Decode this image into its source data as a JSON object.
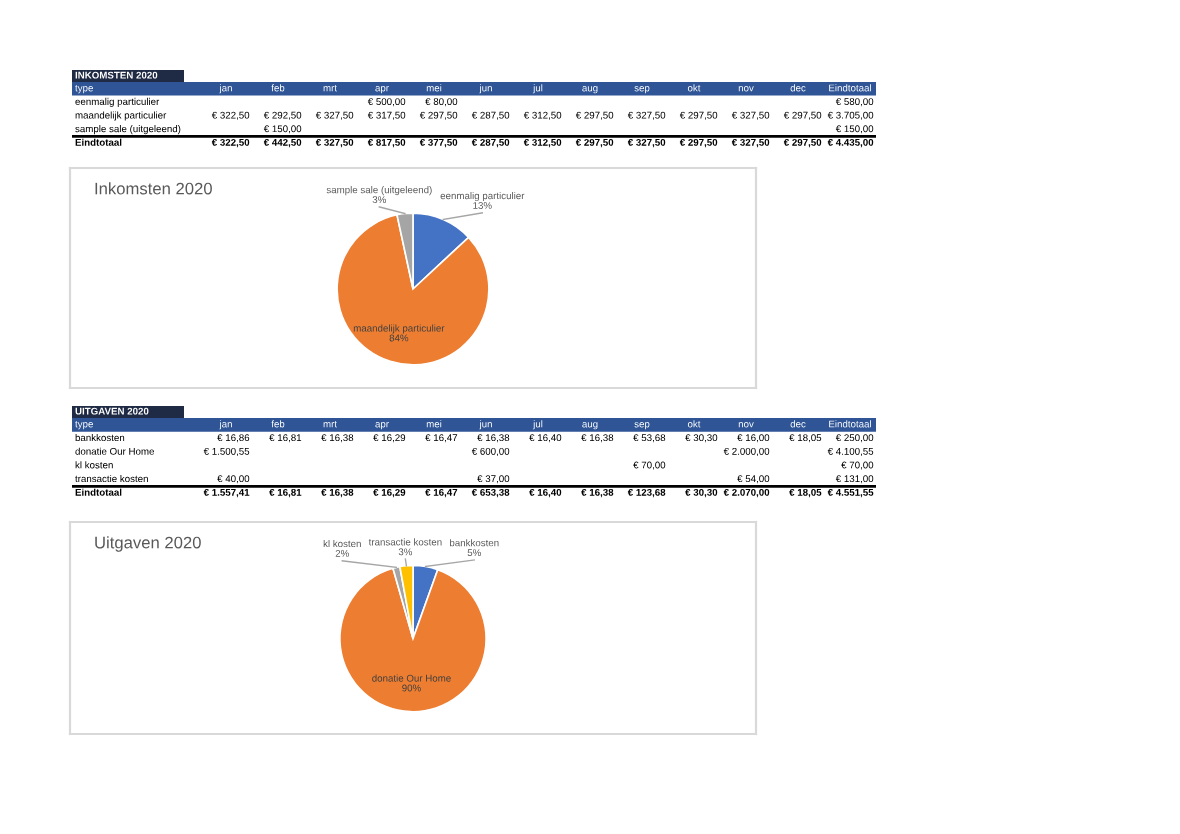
{
  "chart_data": [
    {
      "type": "other",
      "title": "INKOMSTEN 2020",
      "ylabel": "type",
      "categories": [
        "jan",
        "feb",
        "mrt",
        "apr",
        "mei",
        "jun",
        "jul",
        "aug",
        "sep",
        "okt",
        "nov",
        "dec",
        "Eindtotaal"
      ],
      "y_categories": [
        "eenmalig particulier",
        "maandelijk particulier",
        "sample sale (uitgeleend)",
        "Eindtotaal"
      ],
      "cell_labels": [
        [
          null,
          null,
          null,
          "€ 500,00",
          "€ 80,00",
          null,
          null,
          null,
          null,
          null,
          null,
          null,
          "€ 580,00"
        ],
        [
          "€ 322,50",
          "€ 292,50",
          "€ 327,50",
          "€ 317,50",
          "€ 297,50",
          "€ 287,50",
          "€ 312,50",
          "€ 297,50",
          "€ 327,50",
          "€ 297,50",
          "€ 327,50",
          "€ 297,50",
          "€ 3.705,00"
        ],
        [
          null,
          "€ 150,00",
          null,
          null,
          null,
          null,
          null,
          null,
          null,
          null,
          null,
          null,
          "€ 150,00"
        ],
        [
          "€ 322,50",
          "€ 442,50",
          "€ 327,50",
          "€ 817,50",
          "€ 377,50",
          "€ 287,50",
          "€ 312,50",
          "€ 297,50",
          "€ 327,50",
          "€ 297,50",
          "€ 327,50",
          "€ 297,50",
          "€ 4.435,00"
        ]
      ]
    },
    {
      "type": "pie",
      "title": "Inkomsten 2020",
      "categories": [
        "eenmalig particulier",
        "maandelijk particulier",
        "sample sale (uitgeleend)"
      ],
      "values": [
        13.08,
        83.54,
        3.38
      ],
      "colors": [
        "#4472c4",
        "#ed7d31",
        "#a5a5a5"
      ],
      "value_labels": [
        "13%",
        "84%",
        "3%"
      ]
    },
    {
      "type": "other",
      "title": "UITGAVEN 2020",
      "ylabel": "type",
      "categories": [
        "jan",
        "feb",
        "mrt",
        "apr",
        "mei",
        "jun",
        "jul",
        "aug",
        "sep",
        "okt",
        "nov",
        "dec",
        "Eindtotaal"
      ],
      "y_categories": [
        "bankkosten",
        "donatie Our Home",
        "kl kosten",
        "transactie kosten",
        "Eindtotaal"
      ],
      "cell_labels": [
        [
          "€ 16,86",
          "€ 16,81",
          "€ 16,38",
          "€ 16,29",
          "€ 16,47",
          "€ 16,38",
          "€ 16,40",
          "€ 16,38",
          "€ 53,68",
          "€ 30,30",
          "€ 16,00",
          "€ 18,05",
          "€ 250,00"
        ],
        [
          "€ 1.500,55",
          null,
          null,
          null,
          null,
          "€ 600,00",
          null,
          null,
          null,
          null,
          "€ 2.000,00",
          null,
          "€ 4.100,55"
        ],
        [
          null,
          null,
          null,
          null,
          null,
          null,
          null,
          null,
          "€ 70,00",
          null,
          null,
          null,
          "€ 70,00"
        ],
        [
          "€ 40,00",
          null,
          null,
          null,
          null,
          "€ 37,00",
          null,
          null,
          null,
          null,
          "€ 54,00",
          null,
          "€ 131,00"
        ],
        [
          "€ 1.557,41",
          "€ 16,81",
          "€ 16,38",
          "€ 16,29",
          "€ 16,47",
          "€ 653,38",
          "€ 16,40",
          "€ 16,38",
          "€ 123,68",
          "€ 30,30",
          "€ 2.070,00",
          "€ 18,05",
          "€ 4.551,55"
        ]
      ]
    },
    {
      "type": "pie",
      "title": "Uitgaven 2020",
      "categories": [
        "bankkosten",
        "donatie Our Home",
        "kl kosten",
        "transactie kosten"
      ],
      "values": [
        5.49,
        90.09,
        1.54,
        2.88
      ],
      "colors": [
        "#4472c4",
        "#ed7d31",
        "#a5a5a5",
        "#ffc000"
      ],
      "value_labels": [
        "5%",
        "90%",
        "2%",
        "3%"
      ]
    }
  ]
}
